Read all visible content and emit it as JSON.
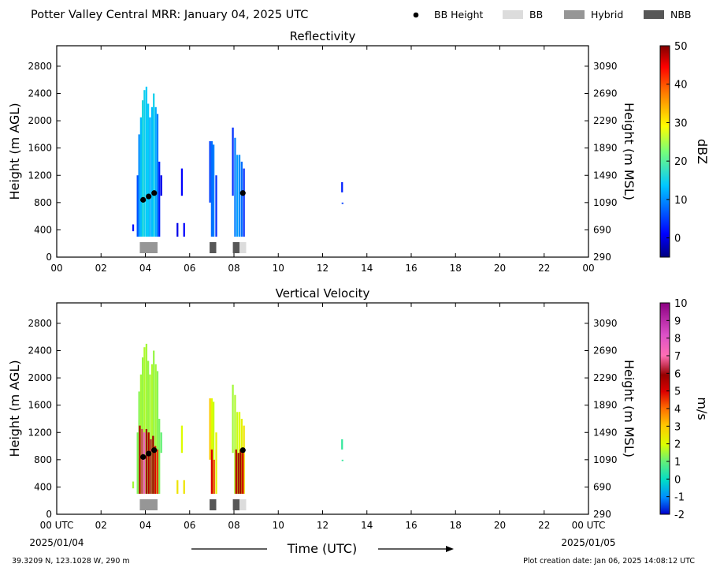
{
  "header": {
    "title": "Potter Valley Central MRR:  January 04, 2025 UTC",
    "legend": [
      {
        "label": "BB Height",
        "kind": "dot",
        "color": "#000000"
      },
      {
        "label": "BB",
        "kind": "rect",
        "color": "#dcdcdc"
      },
      {
        "label": "Hybrid",
        "kind": "rect",
        "color": "#969696"
      },
      {
        "label": "NBB",
        "kind": "rect",
        "color": "#575757"
      }
    ]
  },
  "x_axis": {
    "ticks": [
      "00",
      "02",
      "04",
      "06",
      "08",
      "10",
      "12",
      "14",
      "16",
      "18",
      "20",
      "22",
      "00"
    ],
    "bottom_first_tick": "00 UTC",
    "bottom_last_tick": "00 UTC",
    "date_start": "2025/01/04",
    "date_end": "2025/01/05",
    "label": "Time (UTC)"
  },
  "footer": {
    "location": "39.3209 N, 123.1028 W, 290 m",
    "creation": "Plot creation date: Jan 06, 2025 14:08:12 UTC"
  },
  "chart_data": [
    {
      "type": "heatmap",
      "title": "Reflectivity",
      "xlabel": "",
      "ylabel": "Height (m AGL)",
      "y2label": "Height (m MSL)",
      "xlim": [
        0,
        24
      ],
      "ylim": [
        0,
        3100
      ],
      "y_ticks": [
        0,
        400,
        800,
        1200,
        1600,
        2000,
        2400,
        2800
      ],
      "y2_ticks": [
        290,
        690,
        1090,
        1490,
        1890,
        2290,
        2690,
        3090
      ],
      "colorbar": {
        "label": "dBZ",
        "min": -5,
        "max": 50,
        "ticks": [
          0,
          10,
          20,
          30,
          40,
          50
        ]
      },
      "bb_height": [
        {
          "x": 3.9,
          "y": 840
        },
        {
          "x": 4.15,
          "y": 890
        },
        {
          "x": 4.4,
          "y": 940
        },
        {
          "x": 8.4,
          "y": 940
        }
      ],
      "bb_type_bars": [
        {
          "x0": 3.75,
          "x1": 4.55,
          "type": "Hybrid"
        },
        {
          "x0": 6.9,
          "x1": 7.2,
          "type": "NBB"
        },
        {
          "x0": 7.95,
          "x1": 8.25,
          "type": "NBB"
        },
        {
          "x0": 8.25,
          "x1": 8.55,
          "type": "BB"
        }
      ],
      "echo_columns": [
        {
          "x": 3.45,
          "y0": 380,
          "y1": 480,
          "v": 2
        },
        {
          "x": 3.65,
          "y0": 300,
          "y1": 1200,
          "v": 6
        },
        {
          "x": 3.72,
          "y0": 300,
          "y1": 1800,
          "v": 10
        },
        {
          "x": 3.8,
          "y0": 300,
          "y1": 2050,
          "v": 13
        },
        {
          "x": 3.88,
          "y0": 300,
          "y1": 2300,
          "v": 16
        },
        {
          "x": 3.96,
          "y0": 300,
          "y1": 2450,
          "v": 15
        },
        {
          "x": 4.05,
          "y0": 300,
          "y1": 2500,
          "v": 14
        },
        {
          "x": 4.13,
          "y0": 300,
          "y1": 2250,
          "v": 14
        },
        {
          "x": 4.21,
          "y0": 300,
          "y1": 2050,
          "v": 12
        },
        {
          "x": 4.3,
          "y0": 300,
          "y1": 2200,
          "v": 13
        },
        {
          "x": 4.38,
          "y0": 300,
          "y1": 2400,
          "v": 15
        },
        {
          "x": 4.47,
          "y0": 300,
          "y1": 2200,
          "v": 12
        },
        {
          "x": 4.55,
          "y0": 300,
          "y1": 2100,
          "v": 9
        },
        {
          "x": 4.63,
          "y0": 300,
          "y1": 1400,
          "v": 3
        },
        {
          "x": 4.72,
          "y0": 900,
          "y1": 1200,
          "v": 0
        },
        {
          "x": 5.45,
          "y0": 300,
          "y1": 500,
          "v": 0
        },
        {
          "x": 5.65,
          "y0": 900,
          "y1": 1300,
          "v": 1
        },
        {
          "x": 5.75,
          "y0": 300,
          "y1": 500,
          "v": 1
        },
        {
          "x": 6.92,
          "y0": 800,
          "y1": 1700,
          "v": 5
        },
        {
          "x": 7.0,
          "y0": 300,
          "y1": 1700,
          "v": 8
        },
        {
          "x": 7.08,
          "y0": 300,
          "y1": 1650,
          "v": 9
        },
        {
          "x": 7.2,
          "y0": 300,
          "y1": 1200,
          "v": 4
        },
        {
          "x": 7.95,
          "y0": 900,
          "y1": 1900,
          "v": 4
        },
        {
          "x": 8.05,
          "y0": 300,
          "y1": 1750,
          "v": 9
        },
        {
          "x": 8.15,
          "y0": 300,
          "y1": 1500,
          "v": 11
        },
        {
          "x": 8.25,
          "y0": 300,
          "y1": 1500,
          "v": 10
        },
        {
          "x": 8.35,
          "y0": 300,
          "y1": 1400,
          "v": 8
        },
        {
          "x": 8.45,
          "y0": 300,
          "y1": 1300,
          "v": 4
        },
        {
          "x": 12.88,
          "y0": 950,
          "y1": 1100,
          "v": 3
        },
        {
          "x": 12.9,
          "y0": 780,
          "y1": 800,
          "v": 5
        }
      ]
    },
    {
      "type": "heatmap",
      "title": "Vertical Velocity",
      "xlabel": "Time (UTC)",
      "ylabel": "Height (m AGL)",
      "y2label": "Height (m MSL)",
      "xlim": [
        0,
        24
      ],
      "ylim": [
        0,
        3100
      ],
      "y_ticks": [
        0,
        400,
        800,
        1200,
        1600,
        2000,
        2400,
        2800
      ],
      "y2_ticks": [
        290,
        690,
        1090,
        1490,
        1890,
        2290,
        2690,
        3090
      ],
      "colorbar": {
        "label": "m/s",
        "min": -2,
        "max": 10,
        "ticks": [
          -2,
          -1,
          0,
          1,
          2,
          3,
          4,
          5,
          6,
          7,
          8,
          9,
          10
        ]
      },
      "bb_height": [
        {
          "x": 3.9,
          "y": 840
        },
        {
          "x": 4.15,
          "y": 890
        },
        {
          "x": 4.4,
          "y": 940
        },
        {
          "x": 8.4,
          "y": 940
        }
      ],
      "bb_type_bars": [
        {
          "x0": 3.75,
          "x1": 4.55,
          "type": "Hybrid"
        },
        {
          "x0": 6.9,
          "x1": 7.2,
          "type": "NBB"
        },
        {
          "x0": 7.95,
          "x1": 8.25,
          "type": "NBB"
        },
        {
          "x0": 8.25,
          "x1": 8.55,
          "type": "BB"
        }
      ],
      "echo_columns": [
        {
          "x": 3.45,
          "y0": 380,
          "y1": 480,
          "v": 1.5
        },
        {
          "x": 3.65,
          "y0": 300,
          "y1": 1200,
          "v": 1.2
        },
        {
          "x": 3.72,
          "y0": 300,
          "y1": 1800,
          "v": 1.3
        },
        {
          "x": 3.8,
          "y0": 300,
          "y1": 2050,
          "v": 1.5
        },
        {
          "x": 3.88,
          "y0": 300,
          "y1": 2300,
          "v": 1.4
        },
        {
          "x": 3.96,
          "y0": 300,
          "y1": 2450,
          "v": 1.6
        },
        {
          "x": 4.05,
          "y0": 300,
          "y1": 2500,
          "v": 1.5
        },
        {
          "x": 4.13,
          "y0": 300,
          "y1": 2250,
          "v": 1.4
        },
        {
          "x": 4.21,
          "y0": 300,
          "y1": 2050,
          "v": 1.5
        },
        {
          "x": 4.3,
          "y0": 300,
          "y1": 2200,
          "v": 1.6
        },
        {
          "x": 4.38,
          "y0": 300,
          "y1": 2400,
          "v": 1.4
        },
        {
          "x": 4.47,
          "y0": 300,
          "y1": 2200,
          "v": 1.5
        },
        {
          "x": 4.55,
          "y0": 300,
          "y1": 2100,
          "v": 1.3
        },
        {
          "x": 4.63,
          "y0": 300,
          "y1": 1400,
          "v": 1.2
        },
        {
          "x": 4.72,
          "y0": 900,
          "y1": 1200,
          "v": 1.0
        },
        {
          "x": 5.45,
          "y0": 300,
          "y1": 500,
          "v": 2.5
        },
        {
          "x": 5.65,
          "y0": 900,
          "y1": 1300,
          "v": 2.0
        },
        {
          "x": 5.75,
          "y0": 300,
          "y1": 500,
          "v": 2.5
        },
        {
          "x": 6.92,
          "y0": 800,
          "y1": 1700,
          "v": 3.0
        },
        {
          "x": 7.0,
          "y0": 300,
          "y1": 1700,
          "v": 2.0
        },
        {
          "x": 7.08,
          "y0": 300,
          "y1": 1650,
          "v": 1.8
        },
        {
          "x": 7.2,
          "y0": 300,
          "y1": 1200,
          "v": 2.2
        },
        {
          "x": 7.95,
          "y0": 900,
          "y1": 1900,
          "v": 1.5
        },
        {
          "x": 8.05,
          "y0": 300,
          "y1": 1750,
          "v": 1.6
        },
        {
          "x": 8.15,
          "y0": 300,
          "y1": 1500,
          "v": 1.8
        },
        {
          "x": 8.25,
          "y0": 300,
          "y1": 1500,
          "v": 2.0
        },
        {
          "x": 8.35,
          "y0": 300,
          "y1": 1400,
          "v": 2.2
        },
        {
          "x": 8.45,
          "y0": 300,
          "y1": 1300,
          "v": 2.5
        },
        {
          "x": 12.88,
          "y0": 950,
          "y1": 1100,
          "v": 0.5
        },
        {
          "x": 12.9,
          "y0": 780,
          "y1": 800,
          "v": 0.5
        }
      ],
      "fall_core_columns": [
        {
          "x": 3.75,
          "y0": 300,
          "y1": 1300,
          "v": 5.5
        },
        {
          "x": 3.85,
          "y0": 300,
          "y1": 1250,
          "v": 6.5
        },
        {
          "x": 3.95,
          "y0": 300,
          "y1": 1200,
          "v": 7.5
        },
        {
          "x": 4.05,
          "y0": 300,
          "y1": 1250,
          "v": 6.0
        },
        {
          "x": 4.15,
          "y0": 300,
          "y1": 1200,
          "v": 5.5
        },
        {
          "x": 4.25,
          "y0": 300,
          "y1": 1100,
          "v": 6.2
        },
        {
          "x": 4.35,
          "y0": 300,
          "y1": 1150,
          "v": 5.8
        },
        {
          "x": 4.45,
          "y0": 300,
          "y1": 1000,
          "v": 5.0
        },
        {
          "x": 4.55,
          "y0": 300,
          "y1": 950,
          "v": 4.5
        },
        {
          "x": 7.0,
          "y0": 300,
          "y1": 950,
          "v": 5.0
        },
        {
          "x": 7.1,
          "y0": 300,
          "y1": 800,
          "v": 4.5
        },
        {
          "x": 8.1,
          "y0": 300,
          "y1": 950,
          "v": 5.5
        },
        {
          "x": 8.2,
          "y0": 300,
          "y1": 900,
          "v": 6.0
        },
        {
          "x": 8.3,
          "y0": 300,
          "y1": 950,
          "v": 5.8
        },
        {
          "x": 8.4,
          "y0": 300,
          "y1": 900,
          "v": 5.2
        }
      ]
    }
  ]
}
